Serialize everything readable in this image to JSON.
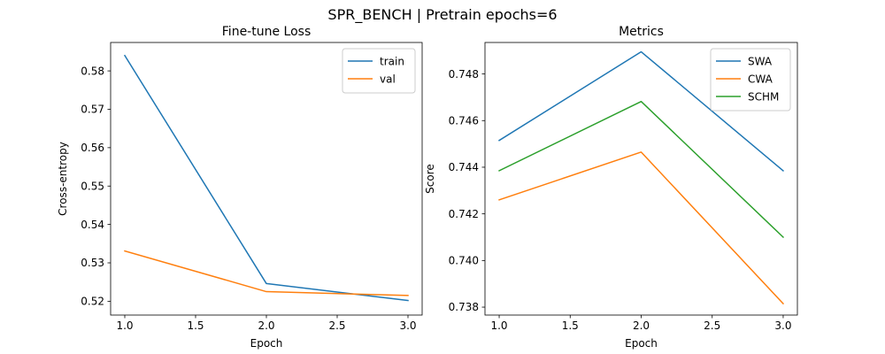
{
  "figure": {
    "suptitle": "SPR_BENCH | Pretrain epochs=6"
  },
  "chart_data": [
    {
      "type": "line",
      "title": "Fine-tune Loss",
      "xlabel": "Epoch",
      "ylabel": "Cross-entropy",
      "x": [
        1.0,
        2.0,
        3.0
      ],
      "xlim": [
        0.9,
        3.1
      ],
      "ylim": [
        0.5164,
        0.5874
      ],
      "xticks": [
        1.0,
        1.5,
        2.0,
        2.5,
        3.0
      ],
      "xtick_labels": [
        "1.0",
        "1.5",
        "2.0",
        "2.5",
        "3.0"
      ],
      "yticks": [
        0.52,
        0.53,
        0.54,
        0.55,
        0.56,
        0.57,
        0.58
      ],
      "ytick_labels": [
        "0.52",
        "0.53",
        "0.54",
        "0.55",
        "0.56",
        "0.57",
        "0.58"
      ],
      "grid": false,
      "legend": "top-right",
      "series": [
        {
          "name": "train",
          "color": "#1f77b4",
          "values": [
            0.584,
            0.5246,
            0.5202
          ]
        },
        {
          "name": "val",
          "color": "#ff7f0e",
          "values": [
            0.5331,
            0.5225,
            0.5215
          ]
        }
      ]
    },
    {
      "type": "line",
      "title": "Metrics",
      "xlabel": "Epoch",
      "ylabel": "Score",
      "x": [
        1.0,
        2.0,
        3.0
      ],
      "xlim": [
        0.9,
        3.1
      ],
      "ylim": [
        0.73766,
        0.74935
      ],
      "xticks": [
        1.0,
        1.5,
        2.0,
        2.5,
        3.0
      ],
      "xtick_labels": [
        "1.0",
        "1.5",
        "2.0",
        "2.5",
        "3.0"
      ],
      "yticks": [
        0.738,
        0.74,
        0.742,
        0.744,
        0.746,
        0.748
      ],
      "ytick_labels": [
        "0.738",
        "0.740",
        "0.742",
        "0.744",
        "0.746",
        "0.748"
      ],
      "grid": false,
      "legend": "top-right",
      "series": [
        {
          "name": "SWA",
          "color": "#1f77b4",
          "values": [
            0.74515,
            0.74895,
            0.74385
          ]
        },
        {
          "name": "CWA",
          "color": "#ff7f0e",
          "values": [
            0.7426,
            0.74465,
            0.73815
          ]
        },
        {
          "name": "SCHM",
          "color": "#2ca02c",
          "values": [
            0.74385,
            0.74682,
            0.741
          ]
        }
      ]
    }
  ]
}
